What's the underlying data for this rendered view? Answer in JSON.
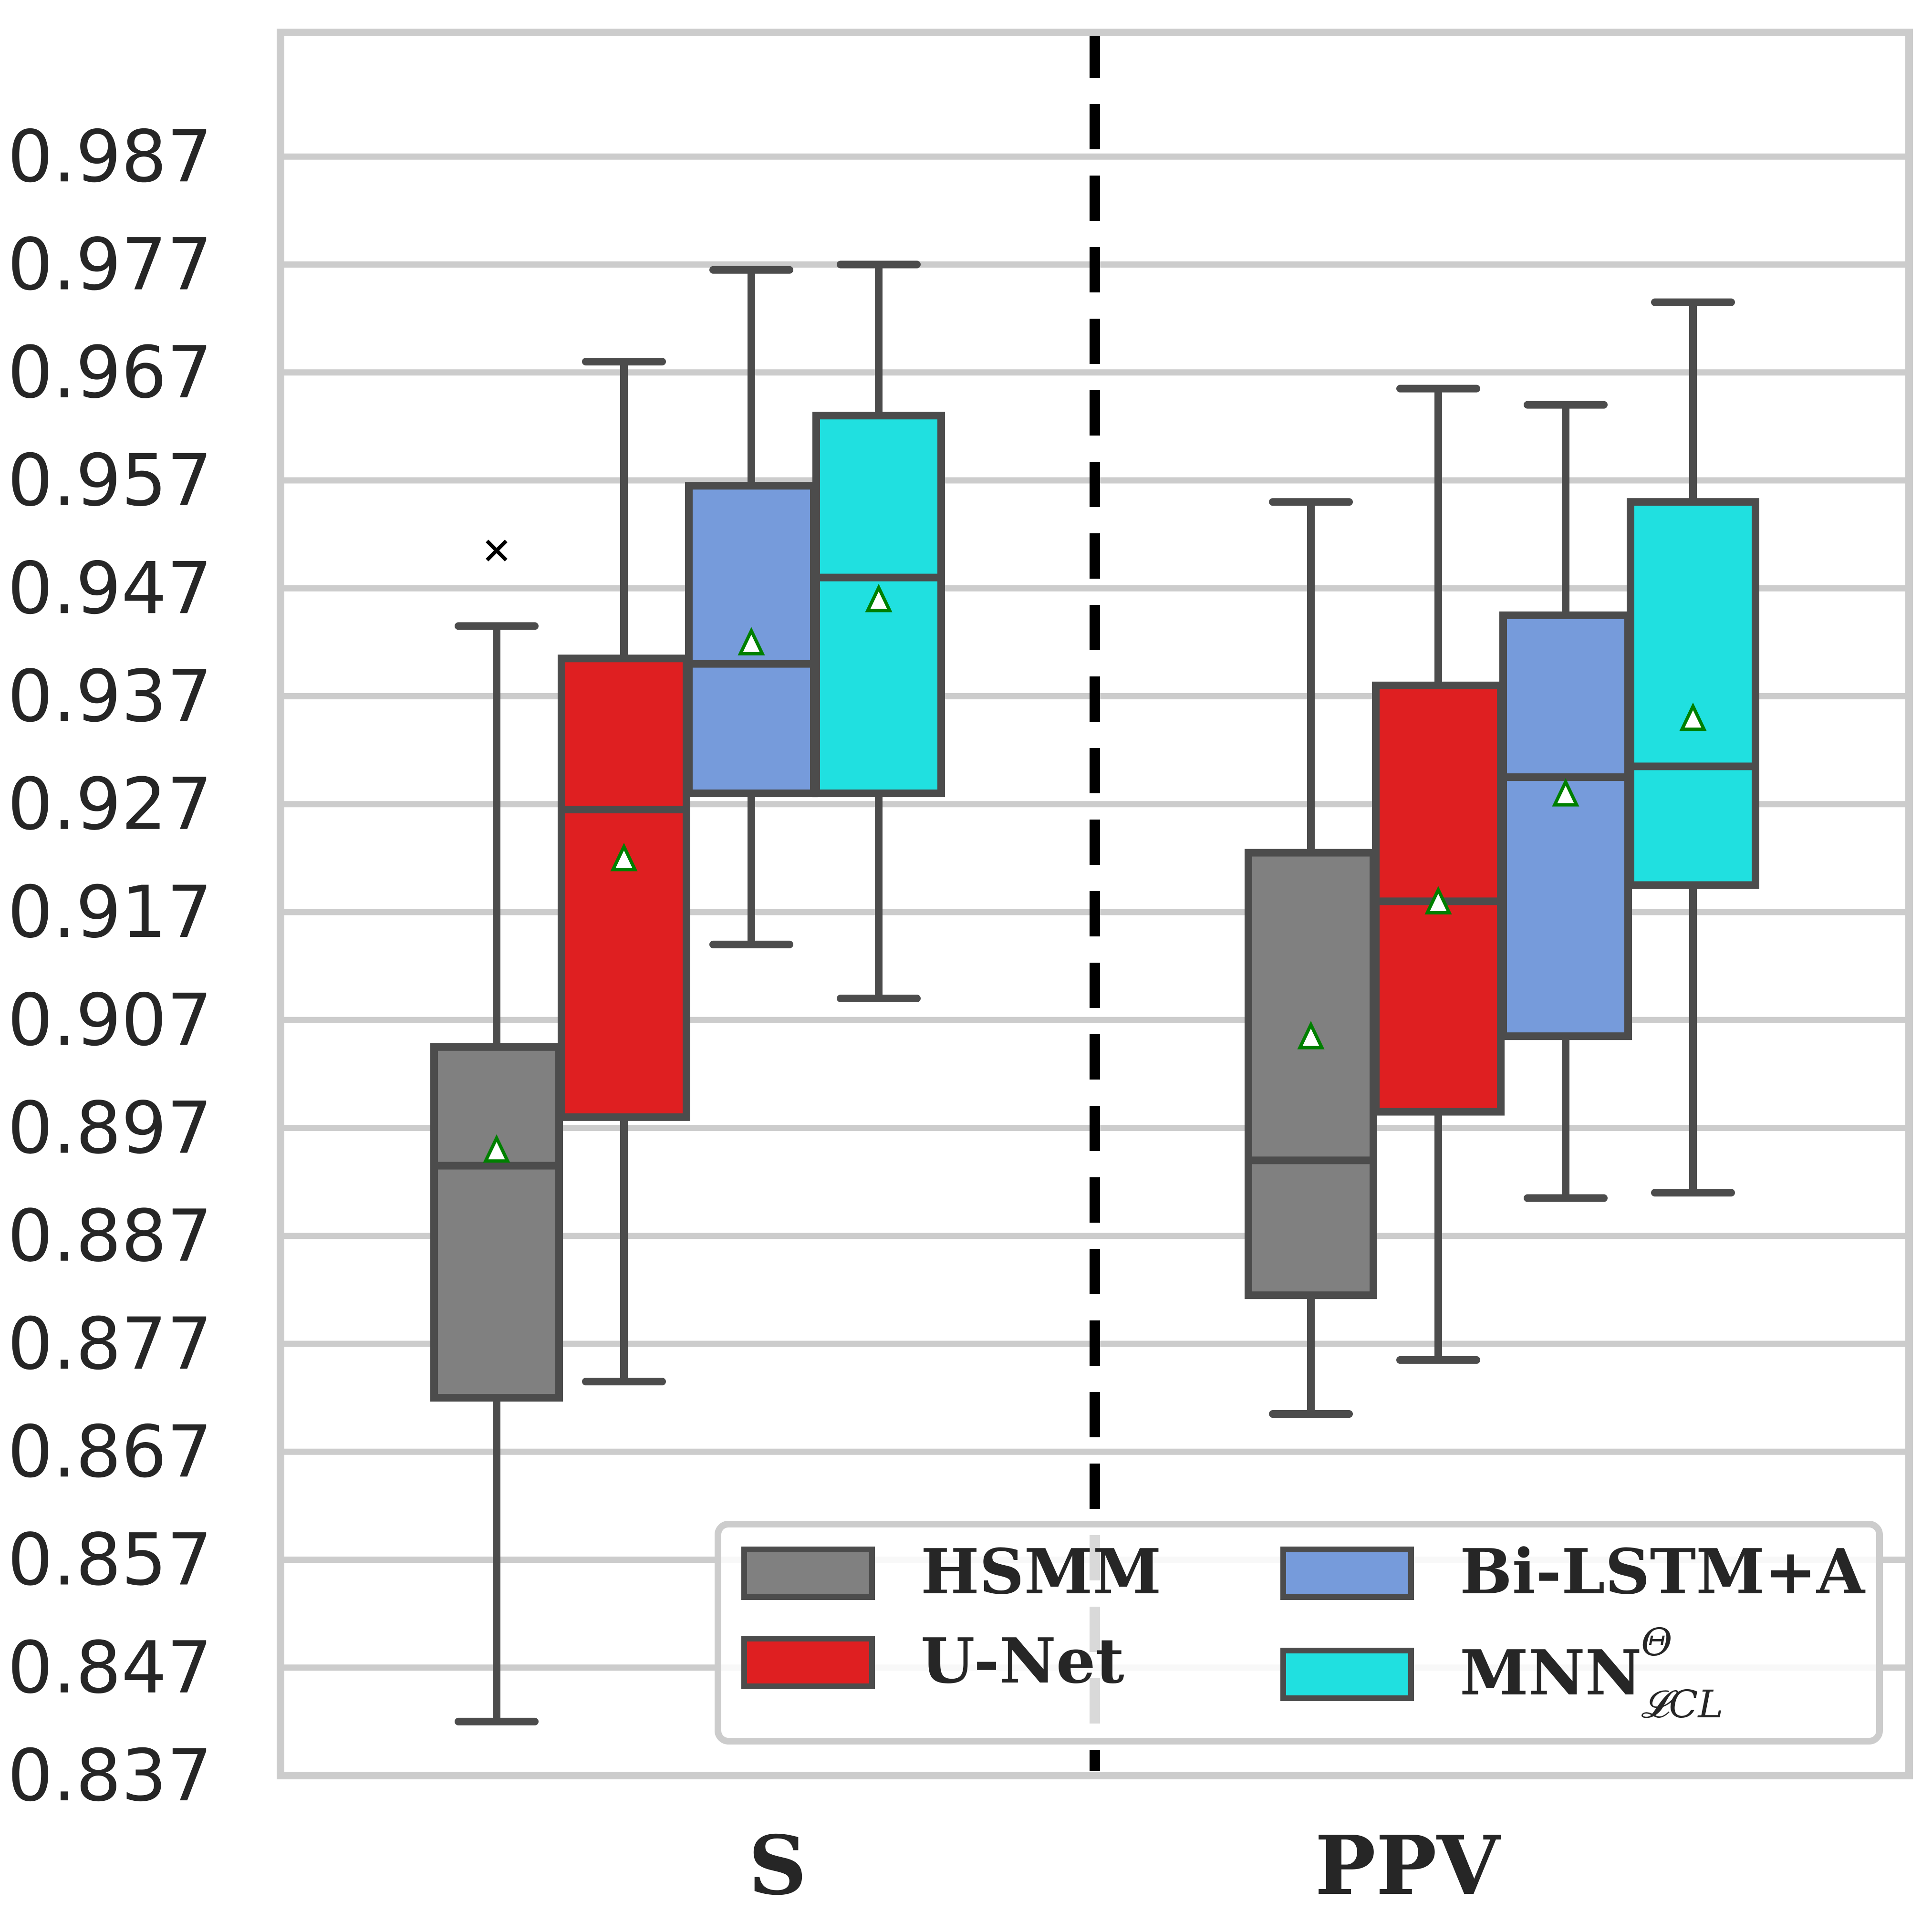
{
  "chart_data": {
    "type": "box",
    "ylim": [
      0.837,
      0.9985
    ],
    "yticks": [
      "0.837",
      "0.847",
      "0.857",
      "0.867",
      "0.877",
      "0.887",
      "0.897",
      "0.907",
      "0.917",
      "0.927",
      "0.937",
      "0.947",
      "0.957",
      "0.967",
      "0.977",
      "0.987"
    ],
    "categories": [
      "S",
      "PPV"
    ],
    "grid": "horizontal",
    "legend_position": "lower-right",
    "series": [
      {
        "name": "HSMM",
        "color": "#808080",
        "boxes": [
          {
            "whisker_low": 0.842,
            "q1": 0.872,
            "median": 0.8935,
            "q3": 0.9045,
            "whisker_high": 0.9435,
            "mean": 0.895,
            "outliers": [
              0.9505
            ]
          },
          {
            "whisker_low": 0.8705,
            "q1": 0.8815,
            "median": 0.894,
            "q3": 0.9225,
            "whisker_high": 0.955,
            "mean": 0.9055,
            "outliers": []
          }
        ]
      },
      {
        "name": "U-Net",
        "color": "#df1f21",
        "boxes": [
          {
            "whisker_low": 0.8735,
            "q1": 0.898,
            "median": 0.9265,
            "q3": 0.9405,
            "whisker_high": 0.968,
            "mean": 0.922,
            "outliers": []
          },
          {
            "whisker_low": 0.8755,
            "q1": 0.8985,
            "median": 0.918,
            "q3": 0.938,
            "whisker_high": 0.9655,
            "mean": 0.918,
            "outliers": []
          }
        ]
      },
      {
        "name": "Bi-LSTM+A",
        "color": "#769bdb",
        "boxes": [
          {
            "whisker_low": 0.914,
            "q1": 0.928,
            "median": 0.94,
            "q3": 0.9565,
            "whisker_high": 0.9765,
            "mean": 0.942,
            "outliers": []
          },
          {
            "whisker_low": 0.8905,
            "q1": 0.9055,
            "median": 0.9295,
            "q3": 0.9445,
            "whisker_high": 0.964,
            "mean": 0.928,
            "outliers": []
          }
        ]
      },
      {
        "name": "MNN",
        "name_superscript": "Θ",
        "name_subscript": "𝓛CL",
        "color": "#20e0e0",
        "boxes": [
          {
            "whisker_low": 0.909,
            "q1": 0.928,
            "median": 0.948,
            "q3": 0.963,
            "whisker_high": 0.977,
            "mean": 0.946,
            "outliers": []
          },
          {
            "whisker_low": 0.891,
            "q1": 0.9195,
            "median": 0.9305,
            "q3": 0.955,
            "whisker_high": 0.9735,
            "mean": 0.935,
            "outliers": []
          }
        ]
      }
    ]
  }
}
